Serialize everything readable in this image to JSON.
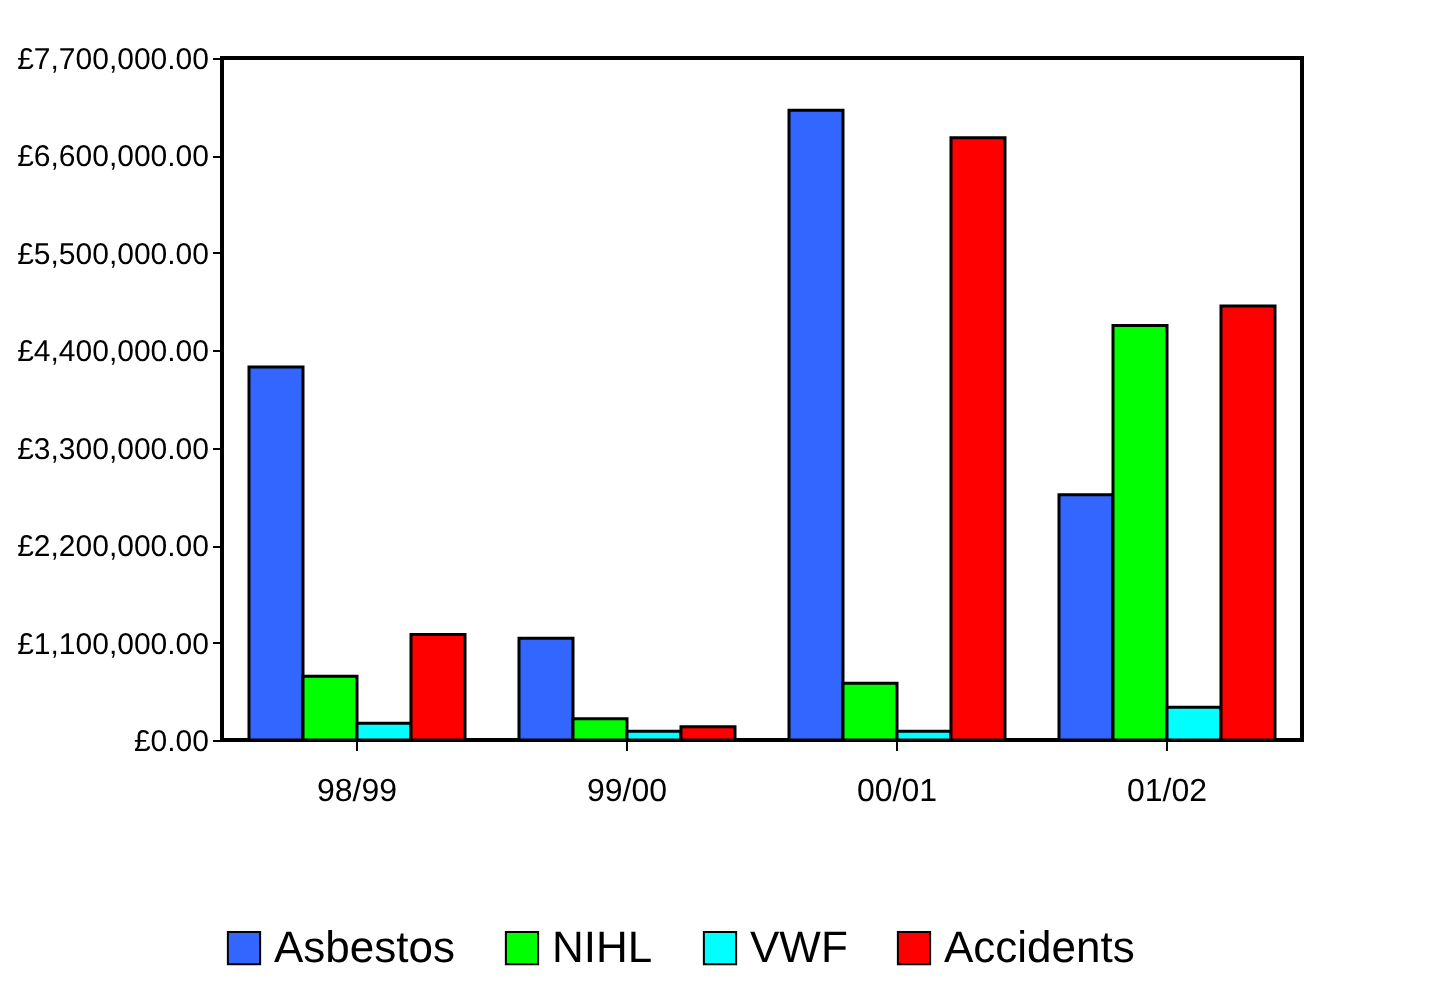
{
  "chart_data": {
    "type": "bar",
    "categories": [
      "98/99",
      "99/00",
      "00/01",
      "01/02"
    ],
    "series": [
      {
        "name": "Asbestos",
        "color": "#3366ff",
        "values": [
          4210000,
          1150000,
          7110000,
          2770000
        ]
      },
      {
        "name": "NIHL",
        "color": "#00ff00",
        "values": [
          720000,
          240000,
          640000,
          4680000
        ]
      },
      {
        "name": "VWF",
        "color": "#00ffff",
        "values": [
          190000,
          100000,
          100000,
          370000
        ]
      },
      {
        "name": "Accidents",
        "color": "#ff0000",
        "values": [
          1190000,
          150000,
          6800000,
          4900000
        ]
      }
    ],
    "ylim": [
      0,
      7700000
    ],
    "yticks": [
      {
        "value": 0,
        "label": "£0.00"
      },
      {
        "value": 1100000,
        "label": "£1,100,000.00"
      },
      {
        "value": 2200000,
        "label": "£2,200,000.00"
      },
      {
        "value": 3300000,
        "label": "£3,300,000.00"
      },
      {
        "value": 4400000,
        "label": "£4,400,000.00"
      },
      {
        "value": 5500000,
        "label": "£5,500,000.00"
      },
      {
        "value": 6600000,
        "label": "£6,600,000.00"
      },
      {
        "value": 7700000,
        "label": "£7,700,000.00"
      }
    ],
    "grid": false,
    "legend": "bottom"
  }
}
